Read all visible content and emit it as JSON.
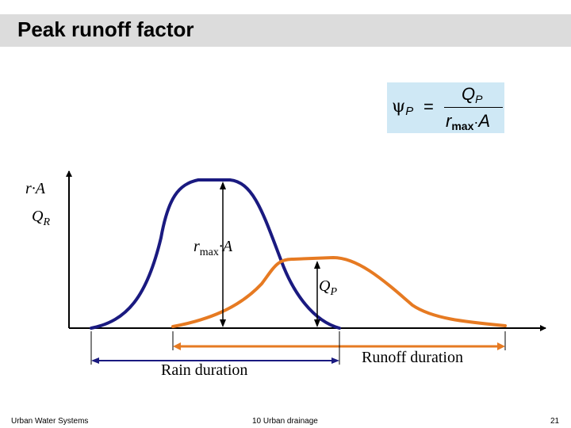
{
  "title": "Peak runoff factor",
  "formula": {
    "lhs": "ψ",
    "lhs_sub": "P",
    "equals": "=",
    "numerator": "Q",
    "numerator_sub": "P",
    "denominator_r": "r",
    "denominator_sub": "max",
    "denominator_dot": "·",
    "denominator_a": "A"
  },
  "y_axis_labels": {
    "rain": "r·A",
    "runoff": "Q",
    "runoff_sub": "R"
  },
  "annotations": {
    "rmax_r": "r",
    "rmax_sub": "max",
    "rmax_rest": "·A",
    "qp": "Q",
    "qp_sub": "P",
    "rain_duration": "Rain duration",
    "runoff_duration": "Runoff duration"
  },
  "colors": {
    "rain_curve": "#1a1a80",
    "runoff_curve": "#e67a22",
    "formula_bg": "#cfe8f5",
    "title_bg": "#dcdcdc"
  },
  "footer": {
    "left": "Urban Water Systems",
    "center": "10  Urban drainage",
    "page": "21"
  }
}
